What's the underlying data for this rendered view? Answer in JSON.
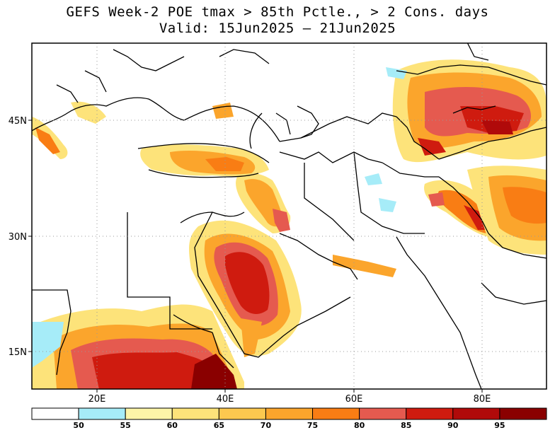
{
  "title": {
    "line1": "GEFS Week-2 POE tmax > 85th Pctle., > 2 Cons. days",
    "line2": "Valid: 15Jun2025 – 21Jun2025"
  },
  "axes": {
    "lat_labels": [
      "45N",
      "30N",
      "15N"
    ],
    "lon_labels": [
      "20E",
      "40E",
      "60E",
      "80E"
    ]
  },
  "colorbar": {
    "ticks": [
      "50",
      "55",
      "60",
      "65",
      "70",
      "75",
      "80",
      "85",
      "90",
      "95"
    ],
    "colors": [
      "#ffffff",
      "#a6ecf8",
      "#fdf5a8",
      "#fde37a",
      "#fcc84f",
      "#fba52c",
      "#f97d14",
      "#e55a4f",
      "#cf1b0f",
      "#b00a0a",
      "#8a0000"
    ]
  }
}
